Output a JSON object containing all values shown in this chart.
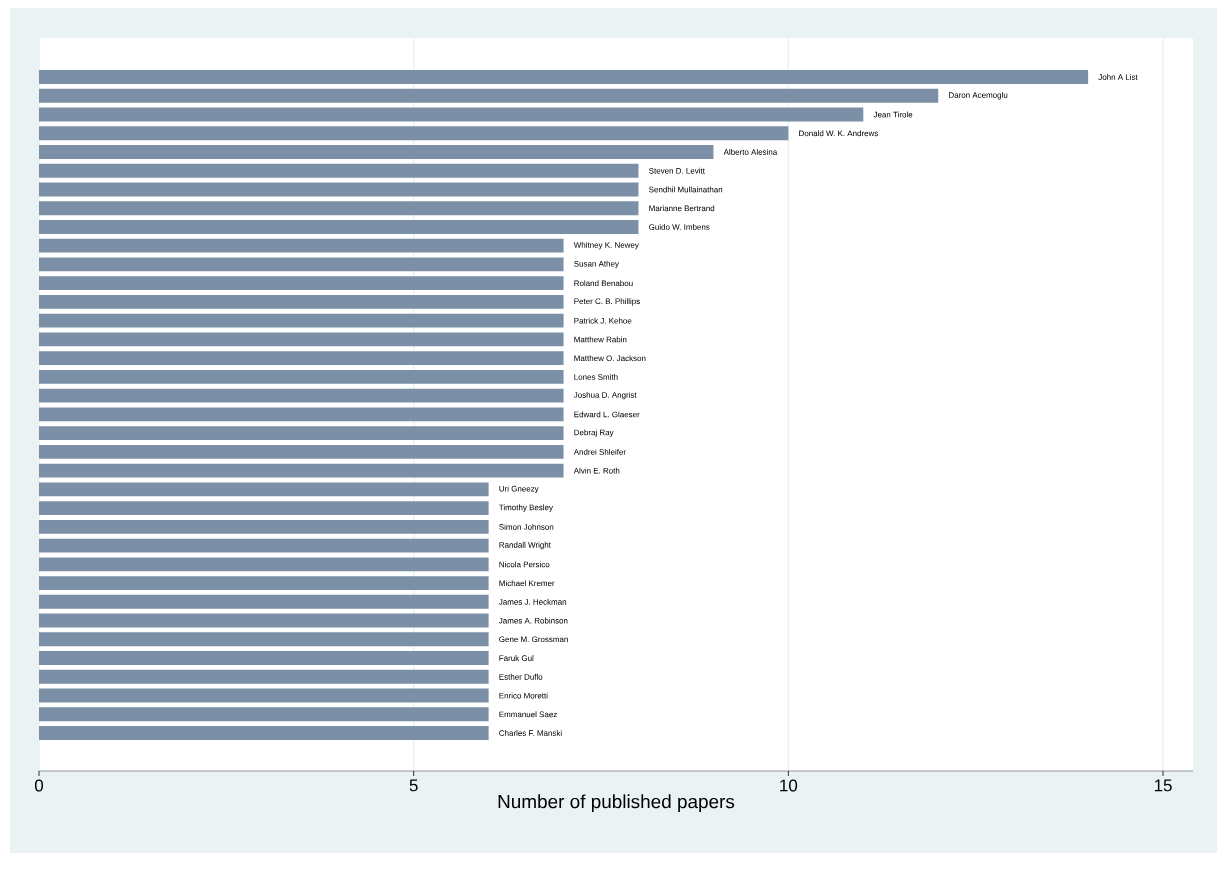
{
  "chart_data": {
    "type": "bar",
    "orientation": "horizontal",
    "xlabel": "Number of published papers",
    "categories": [
      "John A List",
      "Daron Acemoglu",
      "Jean Tirole",
      "Donald W. K. Andrews",
      "Alberto Alesina",
      "Steven D. Levitt",
      "Sendhil Mullainathan",
      "Marianne Bertrand",
      "Guido W. Imbens",
      "Whitney K. Newey",
      "Susan Athey",
      "Roland Benabou",
      "Peter C. B. Phillips",
      "Patrick J. Kehoe",
      "Matthew Rabin",
      "Matthew O. Jackson",
      "Lones Smith",
      "Joshua D. Angrist",
      "Edward L. Glaeser",
      "Debraj Ray",
      "Andrei Shleifer",
      "Alvin E. Roth",
      "Uri Gneezy",
      "Timothy Besley",
      "Simon Johnson",
      "Randall Wright",
      "Nicola Persico",
      "Michael Kremer",
      "James J. Heckman",
      "James A. Robinson",
      "Gene M. Grossman",
      "Faruk Gul",
      "Esther Duflo",
      "Enrico Moretti",
      "Emmanuel Saez",
      "Charles F. Manski"
    ],
    "values": [
      14,
      12,
      11,
      10,
      9,
      8,
      8,
      8,
      8,
      7,
      7,
      7,
      7,
      7,
      7,
      7,
      7,
      7,
      7,
      7,
      7,
      7,
      6,
      6,
      6,
      6,
      6,
      6,
      6,
      6,
      6,
      6,
      6,
      6,
      6,
      6
    ],
    "color": "#7b8fa6",
    "xlim": [
      0,
      15.4
    ],
    "xticks": [
      0,
      5,
      10,
      15
    ],
    "grid": "x"
  }
}
